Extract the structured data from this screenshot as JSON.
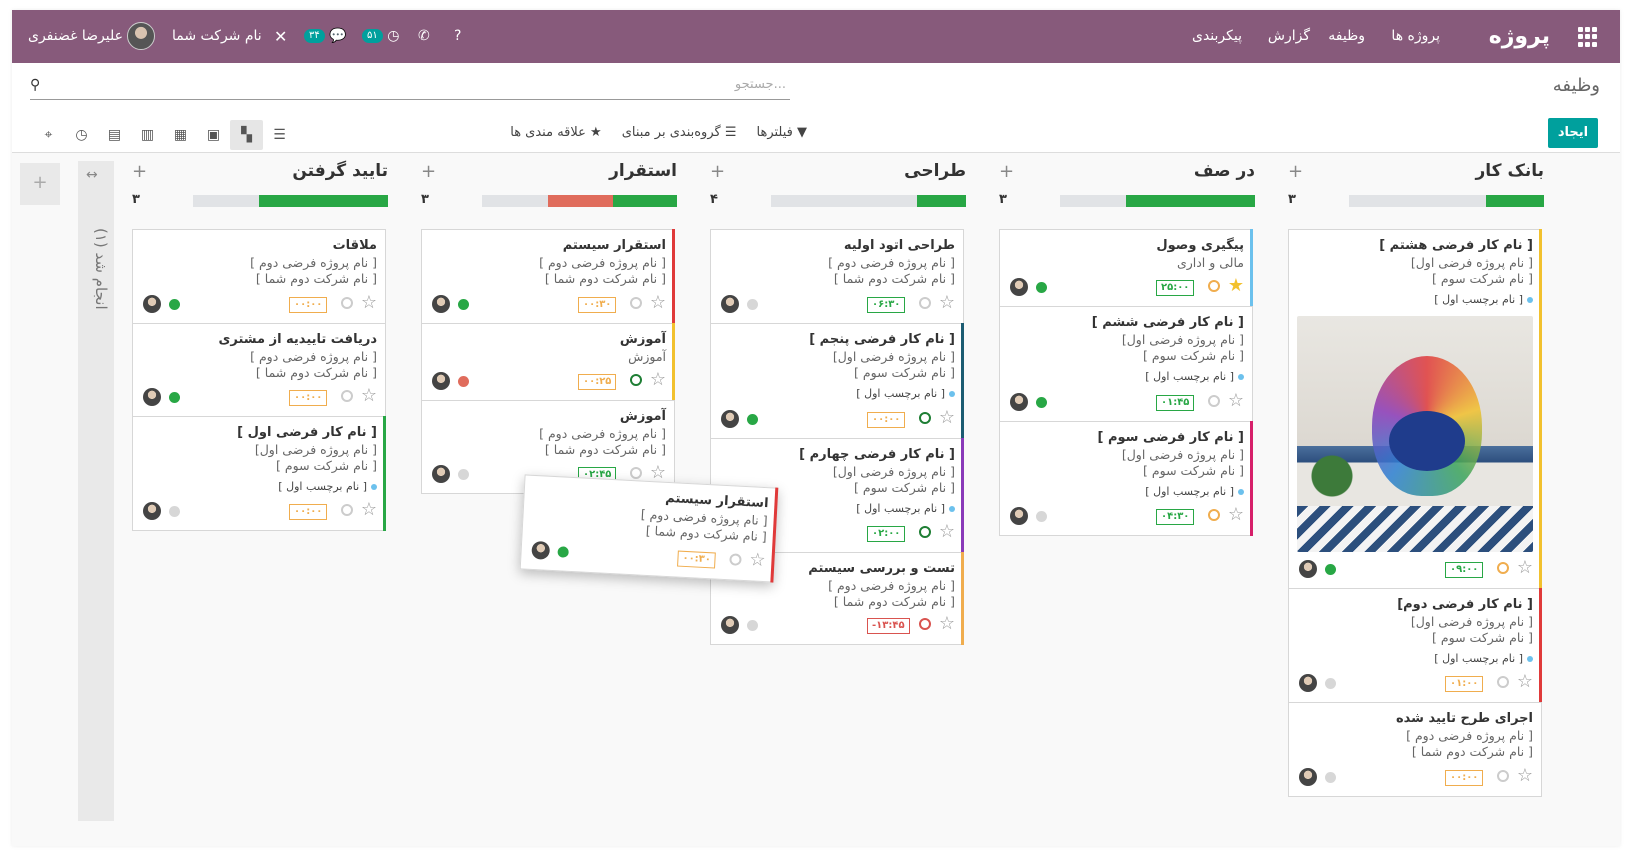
{
  "navbar": {
    "brand": "پروژه",
    "menu": [
      "پروژه ها",
      "وظیفه",
      "گزارش",
      "پیکربندی"
    ],
    "company": "نام شرکت شما",
    "user": "علیرضا غضنفری",
    "chat_badge": "۳۴",
    "activity_badge": "۵۱"
  },
  "control": {
    "breadcrumb": "وظیفه",
    "search_placeholder": "جستجو...",
    "create": "ایجاد",
    "filters": "فیلترها",
    "groupby": "گروه‌بندی بر مبنای",
    "favorites": "علاقه مندی ها"
  },
  "folded": {
    "label": "انجام شد (۱)"
  },
  "columns": [
    {
      "title": "بانک کار",
      "count": "۳",
      "bar": [
        [
          "#28a745",
          0.3
        ],
        [
          "#e1e3e6",
          0.7
        ]
      ],
      "cards": [
        {
          "title": "[ نام کار فرضی هشتم ]",
          "l1": "[ نام پروژه فرضی اول]",
          "l2": "[ نام شرکت سوم ]",
          "tag": "[ نام برچسب اول ]",
          "hours": "۰۹:۰۰"
        },
        {
          "title": "[ نام کار فرضی دوم]",
          "l1": "[ نام پروژه فرضی اول]",
          "l2": "[ نام شرکت سوم ]",
          "tag": "[ نام برچسب اول ]",
          "hours": "۰۱:۰۰"
        },
        {
          "title": "اجرای طرح تایید شده",
          "l1": "[ نام پروژه فرضی دوم ]",
          "l2": "[ نام شرکت دوم شما ]",
          "hours": "۰۰:۰۰"
        }
      ]
    },
    {
      "title": "در صف",
      "count": "۳",
      "bar": [
        [
          "#28a745",
          0.66
        ],
        [
          "#e1e3e6",
          0.34
        ]
      ],
      "cards": [
        {
          "title": "پیگیری وصول",
          "l1": "مالی و اداری",
          "hours": "۲۵:۰۰"
        },
        {
          "title": "[ نام کار فرضی ششم ]",
          "l1": "[ نام پروژه فرضی اول]",
          "l2": "[ نام شرکت سوم ]",
          "tag": "[ نام برچسب اول ]",
          "hours": "۰۱:۴۵"
        },
        {
          "title": "[ نام کار فرضی سوم ]",
          "l1": "[ نام پروژه فرضی اول]",
          "l2": "[ نام شرکت سوم ]",
          "tag": "[ نام برچسب اول ]",
          "hours": "۰۴:۳۰"
        }
      ]
    },
    {
      "title": "طراحی",
      "count": "۴",
      "bar": [
        [
          "#28a745",
          0.25
        ],
        [
          "#e1e3e6",
          0.75
        ]
      ],
      "cards": [
        {
          "title": "طراحی اتود اولیه",
          "l1": "[ نام پروژه فرضی دوم ]",
          "l2": "[ نام شرکت دوم شما ]",
          "hours": "۰۶:۳۰"
        },
        {
          "title": "[ نام کار فرضی پنجم ]",
          "l1": "[ نام پروژه فرضی اول]",
          "l2": "[ نام شرکت سوم ]",
          "tag": "[ نام برچسب اول ]",
          "hours": "۰۰:۰۰"
        },
        {
          "title": "[ نام کار فرضی چهارم ]",
          "l1": "[ نام پروژه فرضی اول]",
          "l2": "[ نام شرکت سوم ]",
          "tag": "[ نام برچسب اول ]",
          "hours": "۰۲:۰۰"
        },
        {
          "title": "تست و بررسی سیستم",
          "l1": "[ نام پروژه فرضی دوم ]",
          "l2": "[ نام شرکت دوم شما ]",
          "hours": "-۱۳:۴۵"
        }
      ]
    },
    {
      "title": "استقرار",
      "count": "۳",
      "bar": [
        [
          "#28a745",
          0.33
        ],
        [
          "#e06c5c",
          0.33
        ],
        [
          "#e1e3e6",
          0.34
        ]
      ],
      "cards": [
        {
          "title": "استقرار سیستم",
          "l1": "[ نام پروژه فرضی دوم ]",
          "l2": "[ نام شرکت دوم شما ]",
          "hours": "۰۰:۳۰"
        },
        {
          "title": "آموزش",
          "l1": "آموزش",
          "hours": "۰۰:۲۵"
        },
        {
          "title": "آموزش",
          "l1": "[ نام پروژه فرضی دوم ]",
          "l2": "[ نام شرکت دوم شما ]",
          "hours": "۰۲:۴۵"
        }
      ]
    },
    {
      "title": "تایید گرفتن",
      "count": "۳",
      "bar": [
        [
          "#28a745",
          0.66
        ],
        [
          "#e1e3e6",
          0.34
        ]
      ],
      "cards": [
        {
          "title": "ملاقات",
          "l1": "[ نام پروژه فرضی دوم ]",
          "l2": "[ نام شرکت دوم شما ]",
          "hours": "۰۰:۰۰"
        },
        {
          "title": "دریافت تاییدیه از مشتری",
          "l1": "[ نام پروژه فرضی دوم ]",
          "l2": "[ نام شرکت دوم شما ]",
          "hours": "۰۰:۰۰"
        },
        {
          "title": "[ نام کار فرضی اول ]",
          "l1": "[ نام پروژه فرضی اول]",
          "l2": "[ نام شرکت سوم ]",
          "tag": "[ نام برچسب اول ]",
          "hours": "۰۰:۰۰"
        }
      ]
    }
  ],
  "dragging": {
    "title": "استقرار سیستم",
    "l1": "[ نام پروژه فرضی دوم ]",
    "l2": "[ نام شرکت دوم شما ]",
    "hours": "۰۰:۳۰"
  },
  "colors": {
    "brand": "#875a7b",
    "accent": "#00a09d",
    "green": "#28a745",
    "red": "#e06c5c"
  }
}
